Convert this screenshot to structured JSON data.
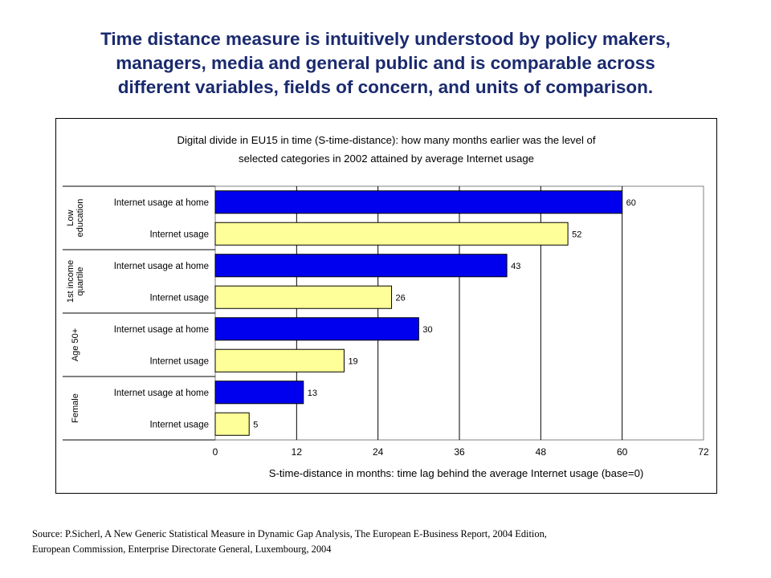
{
  "slide_title": [
    "Time distance measure is intuitively understood by policy makers,",
    "managers, media and general public and is comparable across",
    "different variables, fields of concern, and units of comparison."
  ],
  "source_note": [
    "Source: P.Sicherl, A New Generic Statistical Measure in Dynamic Gap Analysis, The European E-Business Report, 2004 Edition,",
    "European Commission, Enterprise Directorate General, Luxembourg, 2004"
  ],
  "chart_data": {
    "type": "bar",
    "orientation": "horizontal",
    "title": [
      "Digital divide in EU15 in time (S-time-distance): how many months earlier was the level of",
      "selected categories in 2002 attained by average Internet usage"
    ],
    "xlabel": "S-time-distance in months: time lag behind the average Internet usage (base=0)",
    "ylabel": "",
    "xlim": [
      0,
      72
    ],
    "xticks": [
      0,
      12,
      24,
      36,
      48,
      60,
      72
    ],
    "grid": true,
    "colors": {
      "home": "#0000ee",
      "usage": "#ffff99"
    },
    "groups": [
      {
        "label": [
          "Low",
          "education"
        ],
        "bars": [
          {
            "category": "Internet usage at home",
            "value": 60,
            "kind": "home"
          },
          {
            "category": "Internet usage",
            "value": 52,
            "kind": "usage"
          }
        ]
      },
      {
        "label": [
          "1st income",
          "quartile"
        ],
        "bars": [
          {
            "category": "Internet usage at home",
            "value": 43,
            "kind": "home"
          },
          {
            "category": "Internet usage",
            "value": 26,
            "kind": "usage"
          }
        ]
      },
      {
        "label": [
          "Age 50+"
        ],
        "bars": [
          {
            "category": "Internet usage at home",
            "value": 30,
            "kind": "home"
          },
          {
            "category": "Internet usage",
            "value": 19,
            "kind": "usage"
          }
        ]
      },
      {
        "label": [
          "Female"
        ],
        "bars": [
          {
            "category": "Internet usage at home",
            "value": 13,
            "kind": "home"
          },
          {
            "category": "Internet usage",
            "value": 5,
            "kind": "usage"
          }
        ]
      }
    ]
  }
}
